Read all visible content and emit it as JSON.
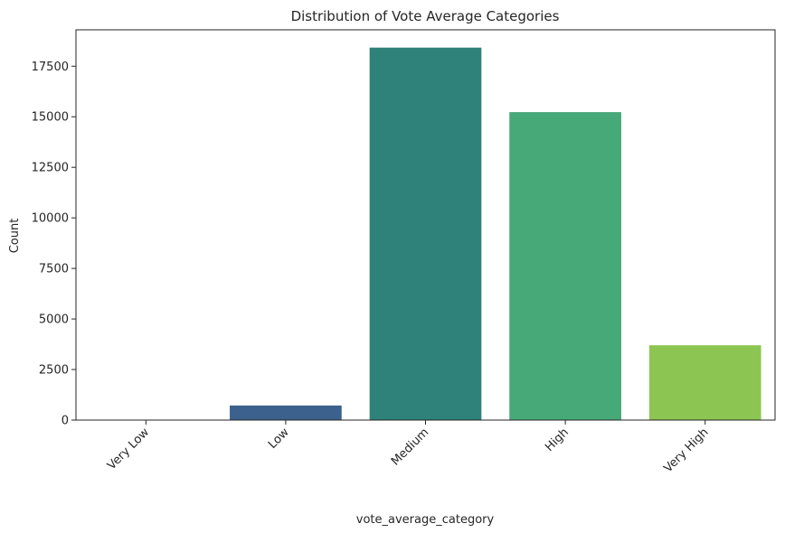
{
  "chart_data": {
    "type": "bar",
    "title": "Distribution of Vote Average Categories",
    "xlabel": "vote_average_category",
    "ylabel": "Count",
    "categories": [
      "Very Low",
      "Low",
      "Medium",
      "High",
      "Very High"
    ],
    "values": [
      8,
      720,
      18420,
      15230,
      3700
    ],
    "colors": [
      "#472d7b",
      "#3b618c",
      "#2e8279",
      "#47a878",
      "#8dc552"
    ],
    "ylim": [
      0,
      19300
    ],
    "yticks": [
      0,
      2500,
      5000,
      7500,
      10000,
      12500,
      15000,
      17500
    ],
    "ytick_labels": [
      "0",
      "2500",
      "5000",
      "7500",
      "10000",
      "12500",
      "15000",
      "17500"
    ],
    "xtick_rotation": 45,
    "grid": false,
    "legend": "none"
  }
}
